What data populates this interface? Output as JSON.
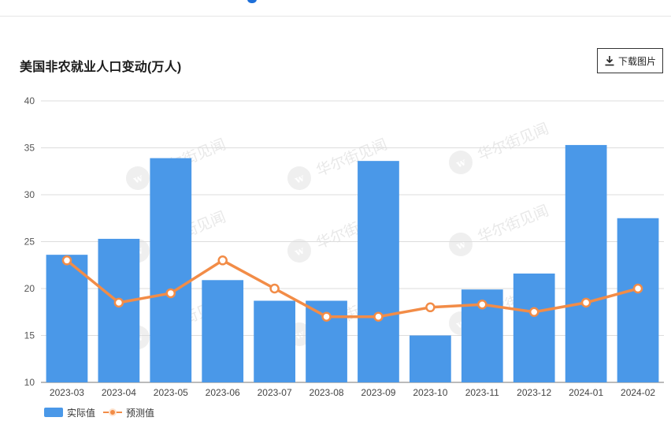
{
  "header": {
    "title": "美国非农就业人口变动(万人)"
  },
  "toolbar": {
    "download_label": "下载图片",
    "download_icon": "download-icon"
  },
  "watermark": {
    "text": "华尔街见闻",
    "color": "#d7d7d7"
  },
  "colors": {
    "bar": "#4a98e8",
    "line": "#f28c47",
    "grid": "#dddddd",
    "axis": "#777777"
  },
  "chart_data": {
    "type": "bar",
    "categories": [
      "2023-03",
      "2023-04",
      "2023-05",
      "2023-06",
      "2023-07",
      "2023-08",
      "2023-09",
      "2023-10",
      "2023-11",
      "2023-12",
      "2024-01",
      "2024-02"
    ],
    "series": [
      {
        "name": "实际值",
        "type": "bar",
        "values": [
          23.6,
          25.3,
          33.9,
          20.9,
          18.7,
          18.7,
          33.6,
          15.0,
          19.9,
          21.6,
          35.3,
          27.5
        ]
      },
      {
        "name": "预测值",
        "type": "line",
        "values": [
          23.0,
          18.5,
          19.5,
          23.0,
          20.0,
          17.0,
          17.0,
          18.0,
          18.3,
          17.5,
          18.5,
          20.0
        ]
      }
    ],
    "yticks": [
      "10",
      "15",
      "20",
      "25",
      "30",
      "35",
      "40"
    ],
    "ylim": [
      10,
      40
    ],
    "grid": true,
    "legend_position": "bottom-left"
  }
}
